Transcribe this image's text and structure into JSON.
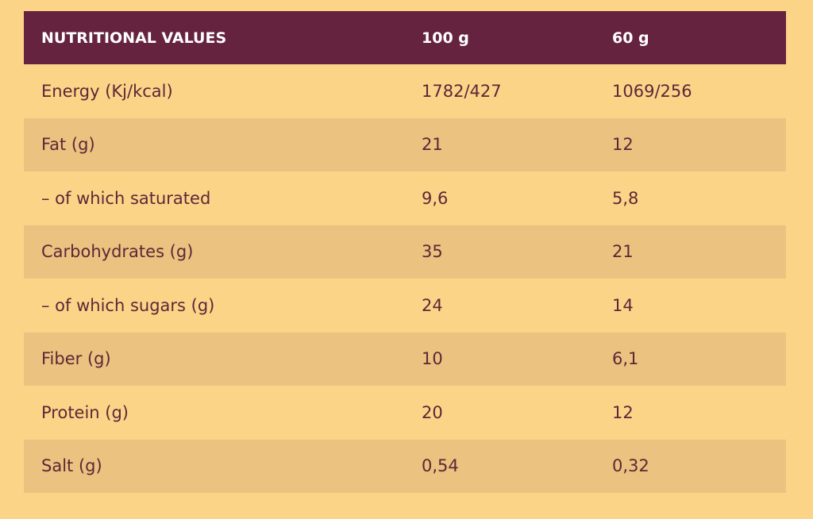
{
  "table": {
    "header": [
      "NUTRITIONAL VALUES",
      "100 g",
      "60 g"
    ],
    "rows": [
      [
        "Energy (Kj/kcal)",
        "1782/427",
        "1069/256"
      ],
      [
        "Fat (g)",
        "21",
        "12"
      ],
      [
        "– of which saturated",
        "9,6",
        "5,8"
      ],
      [
        "Carbohydrates (g)",
        "35",
        "21"
      ],
      [
        "– of which sugars (g)",
        "24",
        "14"
      ],
      [
        "Fiber (g)",
        "10",
        "6,1"
      ],
      [
        "Protein (g)",
        "20",
        "12"
      ],
      [
        "Salt (g)",
        "0,54",
        "0,32"
      ]
    ]
  }
}
